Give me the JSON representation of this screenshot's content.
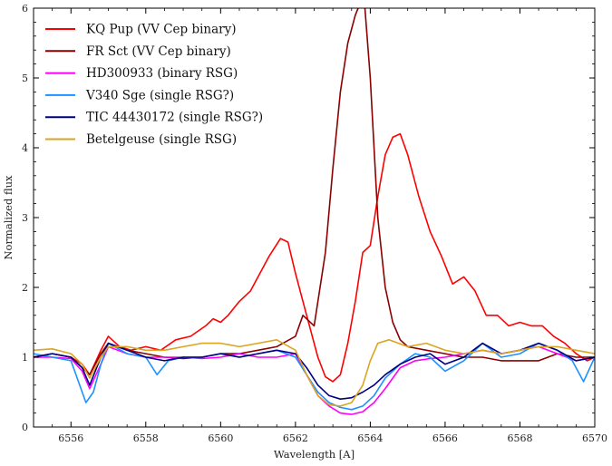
{
  "chart_data": {
    "type": "line",
    "title": "",
    "xlabel": "Wavelength [A]",
    "ylabel": "Normalized flux",
    "xlim": [
      6555,
      6570
    ],
    "ylim": [
      0,
      6
    ],
    "xticks": [
      6556,
      6558,
      6560,
      6562,
      6564,
      6566,
      6568,
      6570
    ],
    "yticks": [
      0,
      1,
      2,
      3,
      4,
      5,
      6
    ],
    "grid": false,
    "legend_position": "top-left",
    "series": [
      {
        "name": "KQ Pup (VV Cep binary)",
        "color": "#ff0000",
        "x": [
          6555.0,
          6555.5,
          6556.0,
          6556.3,
          6556.5,
          6556.8,
          6557.0,
          6557.3,
          6557.6,
          6558.0,
          6558.4,
          6558.8,
          6559.2,
          6559.6,
          6559.8,
          6560.0,
          6560.2,
          6560.5,
          6560.8,
          6561.0,
          6561.3,
          6561.6,
          6561.8,
          6562.0,
          6562.3,
          6562.6,
          6562.8,
          6563.0,
          6563.2,
          6563.4,
          6563.6,
          6563.8,
          6564.0,
          6564.2,
          6564.4,
          6564.6,
          6564.8,
          6565.0,
          6565.3,
          6565.6,
          6565.9,
          6566.2,
          6566.5,
          6566.8,
          6567.1,
          6567.4,
          6567.7,
          6568.0,
          6568.3,
          6568.6,
          6568.9,
          6569.2,
          6569.5,
          6569.8,
          6570.0
        ],
        "y": [
          1.0,
          1.05,
          1.0,
          0.9,
          0.75,
          1.1,
          1.3,
          1.15,
          1.1,
          1.15,
          1.1,
          1.25,
          1.3,
          1.45,
          1.55,
          1.5,
          1.6,
          1.8,
          1.95,
          2.15,
          2.45,
          2.7,
          2.65,
          2.2,
          1.6,
          1.0,
          0.72,
          0.65,
          0.75,
          1.2,
          1.8,
          2.5,
          2.6,
          3.3,
          3.9,
          4.15,
          4.2,
          3.9,
          3.3,
          2.8,
          2.45,
          2.05,
          2.15,
          1.95,
          1.6,
          1.6,
          1.45,
          1.5,
          1.45,
          1.45,
          1.3,
          1.2,
          1.05,
          0.95,
          1.0
        ]
      },
      {
        "name": "FR Sct (VV Cep binary)",
        "color": "#8b0000",
        "x": [
          6555.0,
          6555.5,
          6556.0,
          6556.3,
          6556.5,
          6556.8,
          6557.0,
          6557.5,
          6558.0,
          6558.5,
          6559.0,
          6559.5,
          6560.0,
          6560.5,
          6561.0,
          6561.5,
          6562.0,
          6562.2,
          6562.5,
          6562.8,
          6563.0,
          6563.2,
          6563.4,
          6563.6,
          6563.75,
          6563.85,
          6564.0,
          6564.2,
          6564.4,
          6564.6,
          6564.8,
          6565.0,
          6565.5,
          6566.0,
          6566.5,
          6567.0,
          6567.5,
          6568.0,
          6568.5,
          6569.0,
          6569.5,
          6570.0
        ],
        "y": [
          1.0,
          1.05,
          1.0,
          0.85,
          0.75,
          1.05,
          1.2,
          1.1,
          1.05,
          1.0,
          0.98,
          1.0,
          1.05,
          1.05,
          1.1,
          1.15,
          1.3,
          1.6,
          1.45,
          2.5,
          3.7,
          4.8,
          5.5,
          5.9,
          6.1,
          6.05,
          5.0,
          3.0,
          2.0,
          1.5,
          1.25,
          1.15,
          1.1,
          1.05,
          1.0,
          1.0,
          0.95,
          0.95,
          0.95,
          1.05,
          1.0,
          1.0
        ]
      },
      {
        "name": "HD300933 (binary RSG)",
        "color": "#ff00ff",
        "x": [
          6555.0,
          6555.5,
          6556.0,
          6556.3,
          6556.5,
          6556.8,
          6557.0,
          6557.5,
          6558.0,
          6558.5,
          6559.0,
          6559.5,
          6560.0,
          6560.5,
          6561.0,
          6561.5,
          6562.0,
          6562.3,
          6562.6,
          6562.9,
          6563.2,
          6563.5,
          6563.8,
          6564.1,
          6564.4,
          6564.8,
          6565.2,
          6565.6,
          6566.0,
          6566.5,
          6567.0,
          6567.5,
          6568.0,
          6568.5,
          6569.0,
          6569.5,
          6570.0
        ],
        "y": [
          1.0,
          1.0,
          0.98,
          0.8,
          0.55,
          0.9,
          1.15,
          1.05,
          1.0,
          1.0,
          1.0,
          0.98,
          1.0,
          1.05,
          1.0,
          1.0,
          1.05,
          0.75,
          0.45,
          0.3,
          0.2,
          0.18,
          0.22,
          0.35,
          0.55,
          0.85,
          0.95,
          0.98,
          1.0,
          1.05,
          1.1,
          1.05,
          1.1,
          1.15,
          1.05,
          0.95,
          1.0
        ]
      },
      {
        "name": "V340 Sge (single RSG?)",
        "color": "#1e90ff",
        "x": [
          6555.0,
          6555.5,
          6556.0,
          6556.2,
          6556.4,
          6556.6,
          6556.8,
          6557.0,
          6557.5,
          6558.0,
          6558.3,
          6558.6,
          6559.0,
          6559.5,
          6560.0,
          6560.5,
          6561.0,
          6561.5,
          6562.0,
          6562.3,
          6562.6,
          6562.9,
          6563.2,
          6563.5,
          6563.8,
          6564.1,
          6564.4,
          6564.8,
          6565.2,
          6565.6,
          6566.0,
          6566.5,
          6567.0,
          6567.5,
          6568.0,
          6568.5,
          6569.0,
          6569.4,
          6569.7,
          6570.0
        ],
        "y": [
          1.05,
          1.0,
          0.95,
          0.65,
          0.35,
          0.5,
          0.9,
          1.2,
          1.05,
          1.0,
          0.75,
          0.95,
          1.0,
          1.0,
          1.05,
          1.0,
          1.05,
          1.1,
          1.0,
          0.75,
          0.5,
          0.35,
          0.28,
          0.25,
          0.3,
          0.45,
          0.7,
          0.9,
          1.05,
          1.0,
          0.8,
          0.95,
          1.2,
          1.0,
          1.05,
          1.2,
          1.1,
          0.95,
          0.65,
          1.0
        ]
      },
      {
        "name": "TIC 44430172 (single RSG?)",
        "color": "#000080",
        "x": [
          6555.0,
          6555.5,
          6556.0,
          6556.3,
          6556.5,
          6556.8,
          6557.0,
          6557.5,
          6558.0,
          6558.5,
          6559.0,
          6559.5,
          6560.0,
          6560.5,
          6561.0,
          6561.5,
          6562.0,
          6562.3,
          6562.6,
          6562.9,
          6563.2,
          6563.5,
          6563.8,
          6564.1,
          6564.4,
          6564.8,
          6565.2,
          6565.6,
          6566.0,
          6566.5,
          6567.0,
          6567.5,
          6568.0,
          6568.5,
          6569.0,
          6569.5,
          6570.0
        ],
        "y": [
          1.0,
          1.05,
          1.0,
          0.85,
          0.6,
          1.0,
          1.2,
          1.1,
          1.0,
          0.95,
          1.0,
          1.0,
          1.05,
          1.0,
          1.05,
          1.1,
          1.05,
          0.85,
          0.6,
          0.45,
          0.4,
          0.42,
          0.5,
          0.6,
          0.75,
          0.9,
          1.0,
          1.05,
          0.9,
          1.0,
          1.2,
          1.05,
          1.1,
          1.2,
          1.1,
          0.95,
          1.0
        ]
      },
      {
        "name": "Betelgeuse (single RSG)",
        "color": "#daa520",
        "x": [
          6555.0,
          6555.5,
          6556.0,
          6556.3,
          6556.5,
          6556.8,
          6557.0,
          6557.5,
          6558.0,
          6558.5,
          6559.0,
          6559.5,
          6560.0,
          6560.5,
          6561.0,
          6561.5,
          6562.0,
          6562.3,
          6562.6,
          6562.9,
          6563.2,
          6563.5,
          6563.8,
          6564.0,
          6564.2,
          6564.5,
          6565.0,
          6565.5,
          6566.0,
          6566.5,
          6567.0,
          6567.5,
          6568.0,
          6568.5,
          6569.0,
          6569.5,
          6570.0
        ],
        "y": [
          1.1,
          1.12,
          1.05,
          0.9,
          0.7,
          1.0,
          1.15,
          1.15,
          1.1,
          1.1,
          1.15,
          1.2,
          1.2,
          1.15,
          1.2,
          1.25,
          1.1,
          0.75,
          0.45,
          0.32,
          0.3,
          0.35,
          0.6,
          0.95,
          1.2,
          1.25,
          1.15,
          1.2,
          1.1,
          1.05,
          1.1,
          1.05,
          1.1,
          1.15,
          1.15,
          1.1,
          1.05
        ]
      }
    ]
  }
}
